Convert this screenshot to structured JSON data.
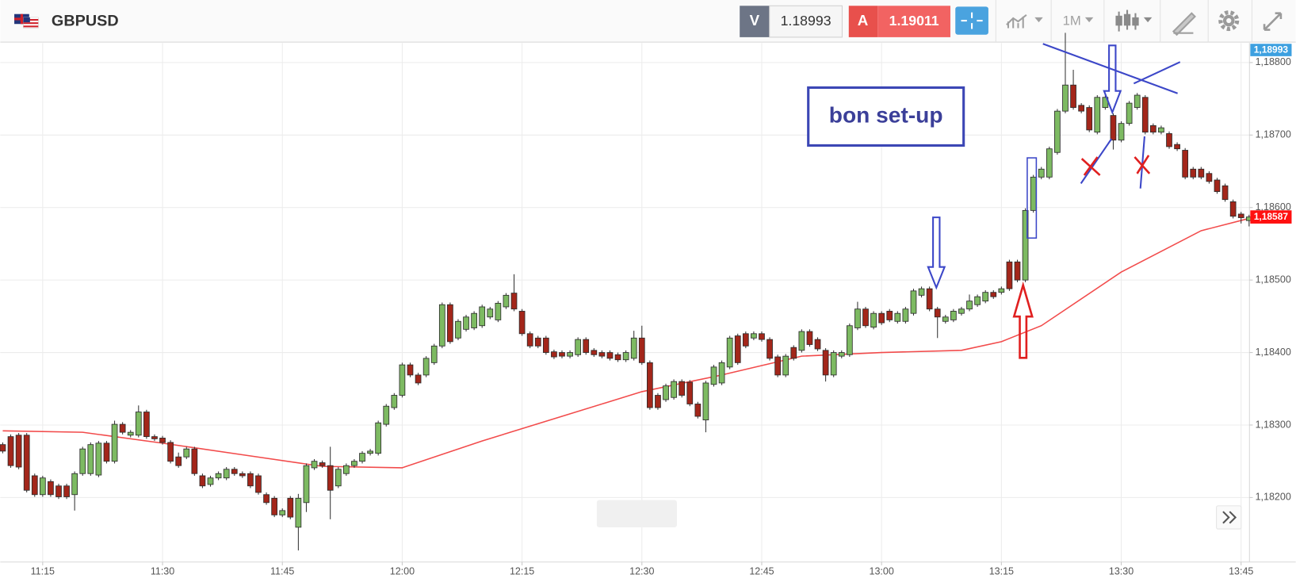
{
  "header": {
    "symbol": "GBPUSD",
    "sell_label": "V",
    "sell_price": "1.18993",
    "buy_label": "A",
    "buy_price": "1.19011",
    "timeframe": "1M"
  },
  "chart_data": {
    "type": "candlestick",
    "annotation": "bon set-up",
    "grid": true,
    "up_color": "#7dba62",
    "down_color": "#a3261a",
    "x": [
      "11:10",
      "11:11",
      "11:12",
      "11:13",
      "11:14",
      "11:15",
      "11:16",
      "11:17",
      "11:18",
      "11:19",
      "11:20",
      "11:21",
      "11:22",
      "11:23",
      "11:24",
      "11:25",
      "11:26",
      "11:27",
      "11:28",
      "11:29",
      "11:30",
      "11:31",
      "11:32",
      "11:33",
      "11:34",
      "11:35",
      "11:36",
      "11:37",
      "11:38",
      "11:39",
      "11:40",
      "11:41",
      "11:42",
      "11:43",
      "11:44",
      "11:45",
      "11:46",
      "11:47",
      "11:48",
      "11:49",
      "11:50",
      "11:51",
      "11:52",
      "11:53",
      "11:54",
      "11:55",
      "11:56",
      "11:57",
      "11:58",
      "11:59",
      "12:00",
      "12:01",
      "12:02",
      "12:03",
      "12:04",
      "12:05",
      "12:06",
      "12:07",
      "12:08",
      "12:09",
      "12:10",
      "12:11",
      "12:12",
      "12:13",
      "12:14",
      "12:15",
      "12:16",
      "12:17",
      "12:18",
      "12:19",
      "12:20",
      "12:21",
      "12:22",
      "12:23",
      "12:24",
      "12:25",
      "12:26",
      "12:27",
      "12:28",
      "12:29",
      "12:30",
      "12:31",
      "12:32",
      "12:33",
      "12:34",
      "12:35",
      "12:36",
      "12:37",
      "12:38",
      "12:39",
      "12:40",
      "12:41",
      "12:42",
      "12:43",
      "12:44",
      "12:45",
      "12:46",
      "12:47",
      "12:48",
      "12:49",
      "12:50",
      "12:51",
      "12:52",
      "12:53",
      "12:54",
      "12:55",
      "12:56",
      "12:57",
      "12:58",
      "12:59",
      "13:00",
      "13:01",
      "13:02",
      "13:03",
      "13:04",
      "13:05",
      "13:06",
      "13:07",
      "13:08",
      "13:09",
      "13:10",
      "13:11",
      "13:12",
      "13:13",
      "13:14",
      "13:15",
      "13:16",
      "13:17",
      "13:18",
      "13:19",
      "13:20",
      "13:21",
      "13:22",
      "13:23",
      "13:24",
      "13:25",
      "13:26",
      "13:27",
      "13:28",
      "13:29",
      "13:30",
      "13:31",
      "13:32",
      "13:33",
      "13:34",
      "13:35",
      "13:36",
      "13:37",
      "13:38",
      "13:39",
      "13:40",
      "13:41",
      "13:42",
      "13:43",
      "13:44",
      "13:45",
      "13:46"
    ],
    "series": [
      {
        "open": [
          1.18273,
          1.18284,
          1.18286,
          1.18286,
          1.1823,
          1.18204,
          1.18222,
          1.18216,
          1.18216,
          1.18204,
          1.18233,
          1.18233,
          1.18231,
          1.18275,
          1.1825,
          1.18301,
          1.18286,
          1.18286,
          1.18318,
          1.18284,
          1.18282,
          1.18276,
          1.18256,
          1.18256,
          1.18267,
          1.1823,
          1.18218,
          1.18227,
          1.18227,
          1.18239,
          1.18233,
          1.18233,
          1.1823,
          1.18204,
          1.18199,
          1.18176,
          1.18199,
          1.18159,
          1.18193,
          1.18241,
          1.18248,
          1.18244,
          1.18216,
          1.18233,
          1.18244,
          1.1825,
          1.18261,
          1.18261,
          1.18301,
          1.18324,
          1.18341,
          1.18383,
          1.18369,
          1.18369,
          1.18386,
          1.18409,
          1.18466,
          1.1842,
          1.18432,
          1.18434,
          1.18437,
          1.18449,
          1.18445,
          1.18463,
          1.18482,
          1.18457,
          1.18426,
          1.1842,
          1.1842,
          1.18401,
          1.184,
          1.18395,
          1.18397,
          1.18418,
          1.18403,
          1.184,
          1.184,
          1.18397,
          1.1839,
          1.18392,
          1.1842,
          1.18386,
          1.18341,
          1.18335,
          1.18338,
          1.1836,
          1.18359,
          1.18329,
          1.18307,
          1.18356,
          1.18358,
          1.1838,
          1.18423,
          1.18426,
          1.1842,
          1.18426,
          1.18418,
          1.18394,
          1.18369,
          1.18407,
          1.18403,
          1.18429,
          1.18418,
          1.18403,
          1.18369,
          1.18395,
          1.18397,
          1.18434,
          1.1846,
          1.18435,
          1.18454,
          1.18457,
          1.18443,
          1.18443,
          1.18454,
          1.18479,
          1.18488,
          1.1846,
          1.18443,
          1.18445,
          1.18454,
          1.1846,
          1.18466,
          1.18471,
          1.18483,
          1.18483,
          1.18525,
          1.18525,
          1.185,
          1.18596,
          1.18642,
          1.18642,
          1.18676,
          1.18733,
          1.18769,
          1.18741,
          1.18738,
          1.18704,
          1.18738,
          1.18727,
          1.18693,
          1.18716,
          1.18738,
          1.18752,
          1.18713,
          1.18704,
          1.18702,
          1.18687,
          1.18679,
          1.18653,
          1.18653,
          1.18647,
          1.18638,
          1.1863,
          1.18608,
          1.18591,
          1.18582
        ],
        "high": [
          1.18276,
          1.18287,
          1.18289,
          1.18289,
          1.18233,
          1.1823,
          1.18225,
          1.18219,
          1.18219,
          1.18236,
          1.1827,
          1.18276,
          1.18278,
          1.18278,
          1.18306,
          1.18304,
          1.18293,
          1.18327,
          1.18321,
          1.18287,
          1.18285,
          1.18279,
          1.18262,
          1.1827,
          1.1827,
          1.18233,
          1.1823,
          1.18236,
          1.18242,
          1.18242,
          1.18236,
          1.18236,
          1.18233,
          1.18207,
          1.18202,
          1.18185,
          1.18202,
          1.18205,
          1.18247,
          1.18253,
          1.18251,
          1.1827,
          1.18242,
          1.18247,
          1.18253,
          1.18264,
          1.18267,
          1.18306,
          1.18329,
          1.18344,
          1.18386,
          1.18386,
          1.18372,
          1.18395,
          1.18412,
          1.18469,
          1.18469,
          1.18446,
          1.18452,
          1.18457,
          1.18466,
          1.18463,
          1.18471,
          1.18482,
          1.18508,
          1.1846,
          1.18429,
          1.18423,
          1.18423,
          1.18404,
          1.18403,
          1.18403,
          1.18421,
          1.18421,
          1.18406,
          1.18403,
          1.18403,
          1.184,
          1.18403,
          1.1843,
          1.18437,
          1.18389,
          1.18344,
          1.18357,
          1.18363,
          1.18363,
          1.18362,
          1.18332,
          1.18361,
          1.18383,
          1.18389,
          1.18423,
          1.18426,
          1.18429,
          1.18429,
          1.18429,
          1.18421,
          1.18397,
          1.18398,
          1.1841,
          1.18432,
          1.18432,
          1.18421,
          1.18406,
          1.18403,
          1.18403,
          1.1844,
          1.1847,
          1.18463,
          1.18457,
          1.18457,
          1.1846,
          1.18457,
          1.18463,
          1.18488,
          1.18491,
          1.18491,
          1.18463,
          1.18452,
          1.1846,
          1.18463,
          1.1848,
          1.1848,
          1.18486,
          1.18486,
          1.18491,
          1.18528,
          1.18528,
          1.18599,
          1.18645,
          1.18656,
          1.18684,
          1.18736,
          1.18841,
          1.1879,
          1.18744,
          1.18741,
          1.18755,
          1.18755,
          1.1873,
          1.18719,
          1.18747,
          1.18758,
          1.18755,
          1.18716,
          1.18713,
          1.18705,
          1.1869,
          1.18682,
          1.18656,
          1.18656,
          1.1865,
          1.18641,
          1.18633,
          1.18611,
          1.18594,
          1.1859
        ],
        "low": [
          1.18261,
          1.18241,
          1.18239,
          1.18207,
          1.18201,
          1.18201,
          1.18201,
          1.18198,
          1.18198,
          1.18182,
          1.1823,
          1.1823,
          1.18228,
          1.18247,
          1.18247,
          1.18287,
          1.18283,
          1.18283,
          1.18281,
          1.18278,
          1.18273,
          1.18247,
          1.18241,
          1.18253,
          1.1823,
          1.18213,
          1.18215,
          1.18224,
          1.18224,
          1.1823,
          1.18227,
          1.18213,
          1.18204,
          1.1819,
          1.18173,
          1.18173,
          1.1817,
          1.18127,
          1.1818,
          1.18238,
          1.18241,
          1.1817,
          1.18213,
          1.1823,
          1.18241,
          1.18247,
          1.18258,
          1.18258,
          1.18298,
          1.18321,
          1.18338,
          1.18366,
          1.18355,
          1.18366,
          1.18383,
          1.18406,
          1.18412,
          1.18417,
          1.18429,
          1.18431,
          1.18434,
          1.18446,
          1.18442,
          1.1846,
          1.18457,
          1.18423,
          1.18406,
          1.18406,
          1.18397,
          1.18391,
          1.18392,
          1.18392,
          1.18394,
          1.18397,
          1.18394,
          1.18392,
          1.18389,
          1.18387,
          1.18387,
          1.18389,
          1.18383,
          1.18321,
          1.18321,
          1.18332,
          1.18335,
          1.18338,
          1.18326,
          1.18309,
          1.1829,
          1.18353,
          1.18355,
          1.18377,
          1.18383,
          1.18406,
          1.18417,
          1.18415,
          1.18389,
          1.18366,
          1.18366,
          1.18389,
          1.184,
          1.18408,
          1.18402,
          1.1836,
          1.18366,
          1.18392,
          1.18394,
          1.18431,
          1.18434,
          1.18432,
          1.18438,
          1.18442,
          1.1844,
          1.1844,
          1.18451,
          1.18476,
          1.18457,
          1.1842,
          1.1844,
          1.18442,
          1.18451,
          1.18457,
          1.18463,
          1.18468,
          1.18474,
          1.1848,
          1.18485,
          1.18497,
          1.18497,
          1.18593,
          1.18639,
          1.18639,
          1.18673,
          1.1873,
          1.18735,
          1.1873,
          1.18704,
          1.18701,
          1.18735,
          1.1868,
          1.1869,
          1.18713,
          1.18735,
          1.18701,
          1.18701,
          1.18701,
          1.18681,
          1.18678,
          1.18639,
          1.18639,
          1.18639,
          1.18633,
          1.18619,
          1.18608,
          1.18585,
          1.18578,
          1.18574
        ],
        "close": [
          1.18264,
          1.18244,
          1.18242,
          1.1821,
          1.18204,
          1.18227,
          1.18204,
          1.18201,
          1.18201,
          1.18233,
          1.18267,
          1.18273,
          1.18275,
          1.1825,
          1.18301,
          1.1829,
          1.1829,
          1.18318,
          1.18284,
          1.18281,
          1.18276,
          1.1825,
          1.18244,
          1.18267,
          1.18233,
          1.18216,
          1.18227,
          1.18233,
          1.18239,
          1.18233,
          1.1823,
          1.18216,
          1.18207,
          1.18193,
          1.18176,
          1.18182,
          1.18173,
          1.18199,
          1.18244,
          1.1825,
          1.18244,
          1.1821,
          1.18239,
          1.18244,
          1.1825,
          1.18261,
          1.18264,
          1.18303,
          1.18326,
          1.18341,
          1.18383,
          1.18369,
          1.18358,
          1.18392,
          1.18409,
          1.18466,
          1.18415,
          1.18443,
          1.18449,
          1.18454,
          1.18463,
          1.1846,
          1.18468,
          1.18479,
          1.1846,
          1.18426,
          1.18409,
          1.18409,
          1.184,
          1.18394,
          1.18395,
          1.184,
          1.18418,
          1.184,
          1.18397,
          1.18395,
          1.18392,
          1.1839,
          1.184,
          1.1842,
          1.18386,
          1.18324,
          1.18324,
          1.18354,
          1.1836,
          1.18341,
          1.18329,
          1.18312,
          1.18358,
          1.1838,
          1.18386,
          1.1842,
          1.18386,
          1.18409,
          1.18426,
          1.18418,
          1.18392,
          1.18369,
          1.18395,
          1.18392,
          1.18429,
          1.18411,
          1.18405,
          1.18369,
          1.184,
          1.184,
          1.18437,
          1.1846,
          1.18437,
          1.18454,
          1.18441,
          1.18445,
          1.18454,
          1.1846,
          1.18485,
          1.18488,
          1.1846,
          1.18449,
          1.18449,
          1.18457,
          1.1846,
          1.18471,
          1.18477,
          1.18483,
          1.18477,
          1.18488,
          1.18488,
          1.185,
          1.18596,
          1.18642,
          1.18653,
          1.18681,
          1.18733,
          1.18769,
          1.18738,
          1.18733,
          1.18707,
          1.18752,
          1.18752,
          1.18693,
          1.18716,
          1.18744,
          1.18755,
          1.18704,
          1.18704,
          1.1871,
          1.18684,
          1.18681,
          1.18642,
          1.18642,
          1.18642,
          1.18636,
          1.18622,
          1.18611,
          1.18588,
          1.18586,
          1.18587
        ]
      }
    ],
    "moving_average": {
      "color": "#f24b4b",
      "x": [
        "11:10",
        "11:20",
        "11:30",
        "11:40",
        "11:50",
        "12:00",
        "12:10",
        "12:20",
        "12:30",
        "12:40",
        "12:50",
        "13:00",
        "13:10",
        "13:15",
        "13:20",
        "13:30",
        "13:40",
        "13:46"
      ],
      "values": [
        1.18292,
        1.1829,
        1.18275,
        1.18259,
        1.18243,
        1.18241,
        1.18278,
        1.18312,
        1.18346,
        1.18369,
        1.18395,
        1.184,
        1.18403,
        1.18415,
        1.18437,
        1.18511,
        1.18568,
        1.18585
      ]
    },
    "ylim": [
      1.18111,
      1.18827
    ],
    "yticks": [
      {
        "value": 1.182,
        "label": "1,18200"
      },
      {
        "value": 1.183,
        "label": "1,18300"
      },
      {
        "value": 1.184,
        "label": "1,18400"
      },
      {
        "value": 1.185,
        "label": "1,18500"
      },
      {
        "value": 1.186,
        "label": "1,18600"
      },
      {
        "value": 1.187,
        "label": "1,18700"
      },
      {
        "value": 1.188,
        "label": "1,18800"
      }
    ],
    "xticks": [
      "11:15",
      "11:30",
      "11:45",
      "12:00",
      "12:15",
      "12:30",
      "12:45",
      "13:00",
      "13:15",
      "13:30",
      "13:45"
    ],
    "bid_tag": "1,18993",
    "last_price": {
      "value": 1.18587,
      "label": "1,18587",
      "color": "#ff1010"
    }
  }
}
